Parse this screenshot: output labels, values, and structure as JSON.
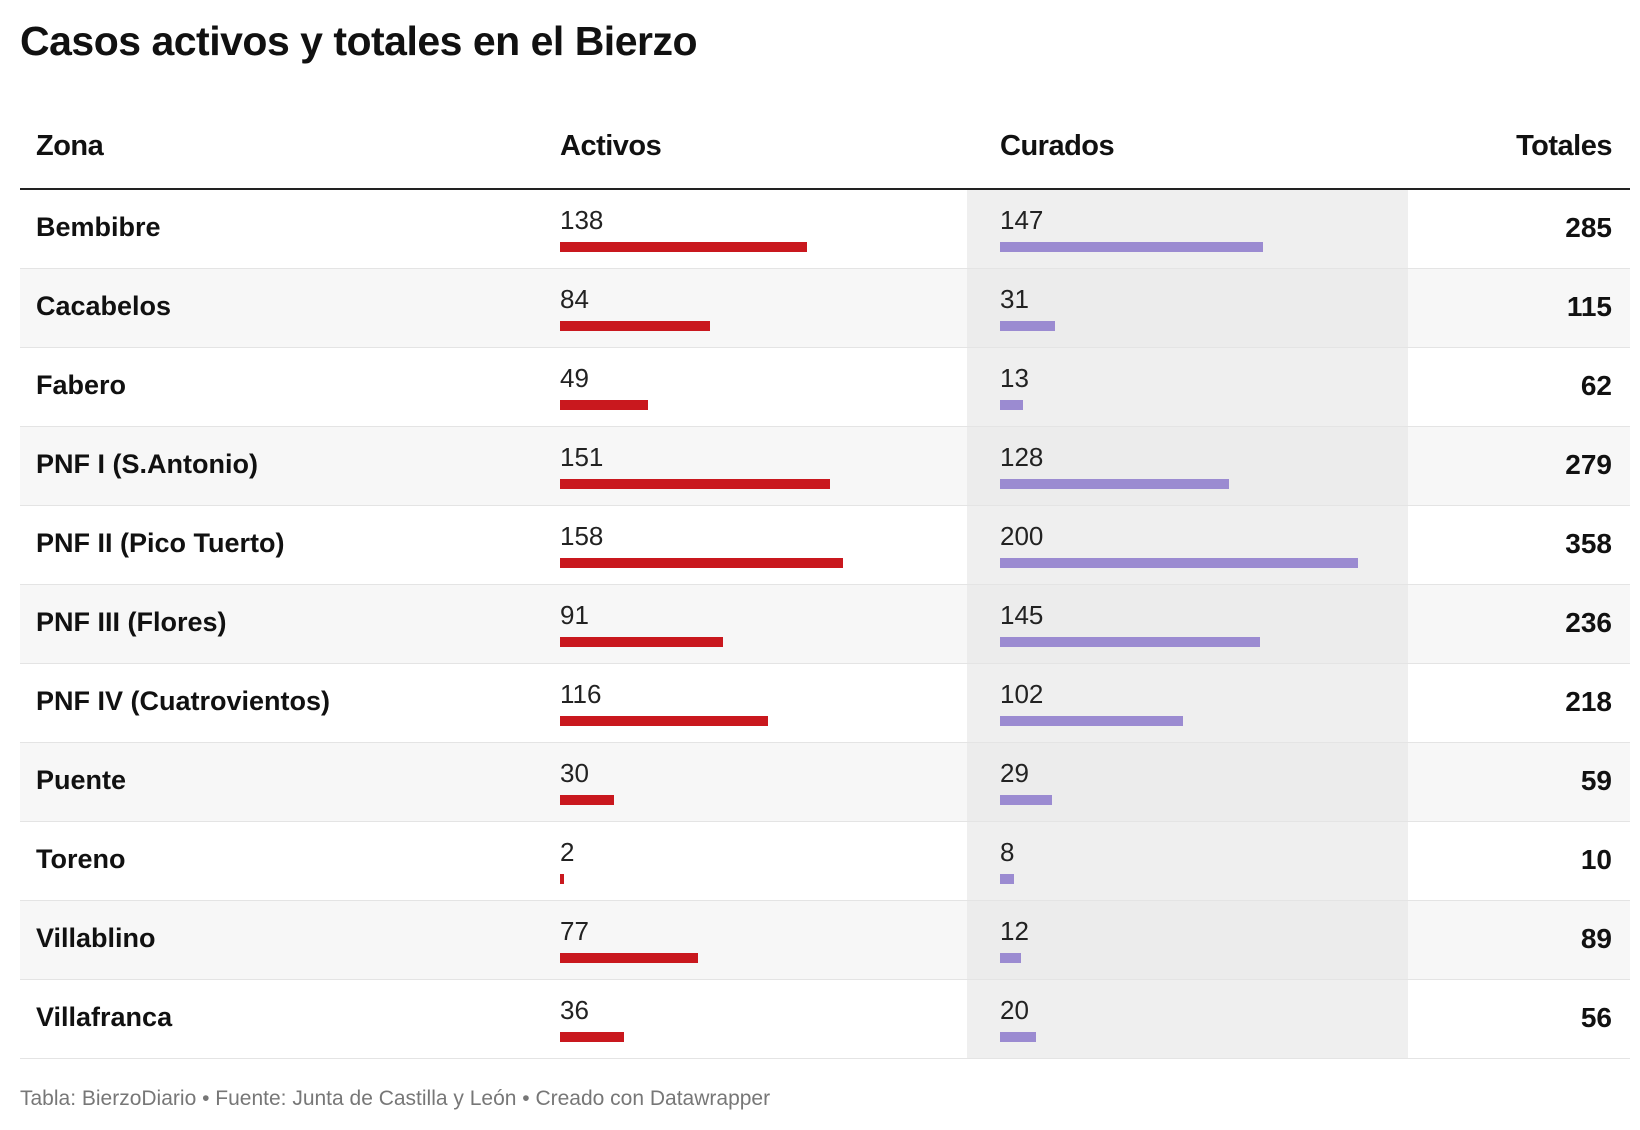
{
  "title": "Casos activos y totales en el Bierzo",
  "footer": "Tabla: BierzoDiario • Fuente: Junta de Castilla y León • Creado con Datawrapper",
  "colors": {
    "activos": "#c9181e",
    "curados": "#9b8bd1"
  },
  "chart_data": {
    "type": "table",
    "columns": [
      "Zona",
      "Activos",
      "Curados",
      "Totales"
    ],
    "rows": [
      {
        "zona": "Bembibre",
        "activos": 138,
        "curados": 147,
        "totales": 285
      },
      {
        "zona": "Cacabelos",
        "activos": 84,
        "curados": 31,
        "totales": 115
      },
      {
        "zona": "Fabero",
        "activos": 49,
        "curados": 13,
        "totales": 62
      },
      {
        "zona": "PNF I (S.Antonio)",
        "activos": 151,
        "curados": 128,
        "totales": 279
      },
      {
        "zona": "PNF II (Pico Tuerto)",
        "activos": 158,
        "curados": 200,
        "totales": 358
      },
      {
        "zona": "PNF III (Flores)",
        "activos": 91,
        "curados": 145,
        "totales": 236
      },
      {
        "zona": "PNF IV (Cuatrovientos)",
        "activos": 116,
        "curados": 102,
        "totales": 218
      },
      {
        "zona": "Puente",
        "activos": 30,
        "curados": 29,
        "totales": 59
      },
      {
        "zona": "Toreno",
        "activos": 2,
        "curados": 8,
        "totales": 10
      },
      {
        "zona": "Villablino",
        "activos": 77,
        "curados": 12,
        "totales": 89
      },
      {
        "zona": "Villafranca",
        "activos": 36,
        "curados": 20,
        "totales": 56
      }
    ]
  }
}
